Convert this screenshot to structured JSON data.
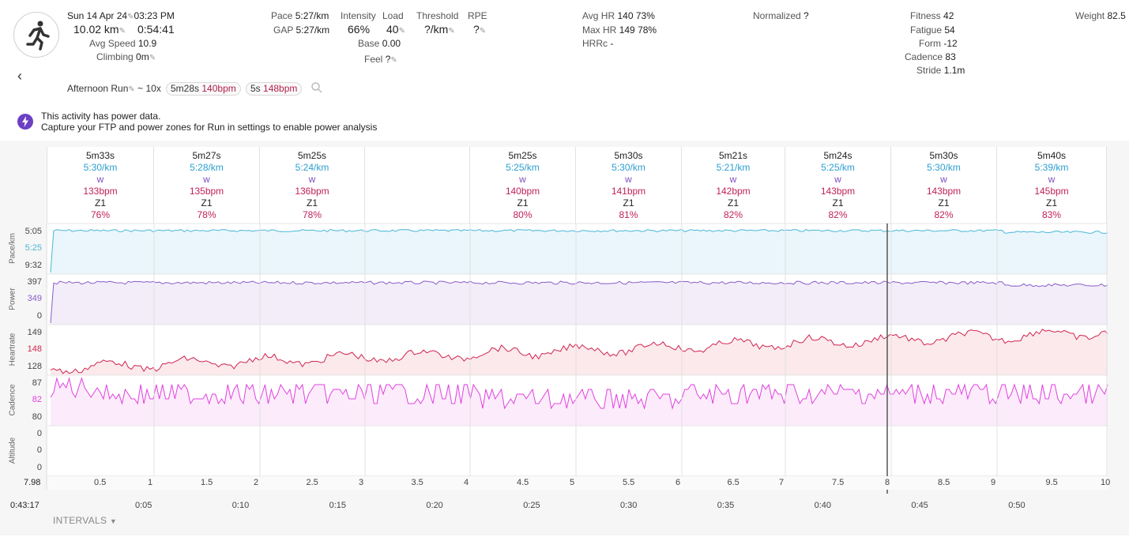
{
  "header": {
    "date_time": "Sun 14 Apr 24",
    "time_of_day": "03:23 PM",
    "distance": "10.02 km",
    "duration": "0:54:41",
    "avg_speed_label": "Avg Speed",
    "avg_speed_value": "10.9",
    "climbing_label": "Climbing",
    "climbing_value": "0m",
    "pace_label": "Pace",
    "pace_value": "5:27/km",
    "gap_label": "GAP",
    "gap_value": "5:27/km",
    "intensity_label": "Intensity",
    "intensity_value": "66%",
    "load_label": "Load",
    "load_value": "40",
    "base_label": "Base",
    "base_value": "0.00",
    "feel_label": "Feel",
    "feel_value": "?",
    "threshold_label": "Threshold",
    "threshold_value": "?/km",
    "rpe_label": "RPE",
    "rpe_value": "?",
    "avg_hr_label": "Avg HR",
    "avg_hr_value": "140",
    "avg_hr_pct": "73%",
    "max_hr_label": "Max HR",
    "max_hr_value": "149",
    "max_hr_pct": "78%",
    "hrrc_label": "HRRc",
    "hrrc_value": "-",
    "normalized_label": "Normalized",
    "normalized_value": "?",
    "fitness_label": "Fitness",
    "fitness_value": "42",
    "fatigue_label": "Fatigue",
    "fatigue_value": "54",
    "form_label": "Form",
    "form_value": "-12",
    "cadence_label": "Cadence",
    "cadence_value": "83",
    "stride_label": "Stride",
    "stride_value": "1.1m",
    "weight_label": "Weight",
    "weight_value": "82.5"
  },
  "activity": {
    "name": "Afternoon Run",
    "tilde": "~",
    "reps": "10x",
    "tag1_time": "5m28s",
    "tag1_hr": "140bpm",
    "tag2_time": "5s",
    "tag2_hr": "148bpm"
  },
  "notice": {
    "line1": "This activity has power data.",
    "line2": "Capture your FTP and power zones for Run in settings to enable power analysis"
  },
  "intervals": [
    {
      "time": "5m33s",
      "pace": "5:30/km",
      "power": "w",
      "hr": "133bpm",
      "zone": "Z1",
      "pct": "76%"
    },
    {
      "time": "5m27s",
      "pace": "5:28/km",
      "power": "w",
      "hr": "135bpm",
      "zone": "Z1",
      "pct": "78%"
    },
    {
      "time": "5m25s",
      "pace": "5:24/km",
      "power": "w",
      "hr": "136bpm",
      "zone": "Z1",
      "pct": "78%"
    },
    {
      "time": "",
      "pace": "",
      "power": "",
      "hr": "",
      "zone": "",
      "pct": ""
    },
    {
      "time": "5m25s",
      "pace": "5:25/km",
      "power": "w",
      "hr": "140bpm",
      "zone": "Z1",
      "pct": "80%"
    },
    {
      "time": "5m30s",
      "pace": "5:30/km",
      "power": "w",
      "hr": "141bpm",
      "zone": "Z1",
      "pct": "81%"
    },
    {
      "time": "5m21s",
      "pace": "5:21/km",
      "power": "w",
      "hr": "142bpm",
      "zone": "Z1",
      "pct": "82%"
    },
    {
      "time": "5m24s",
      "pace": "5:25/km",
      "power": "w",
      "hr": "143bpm",
      "zone": "Z1",
      "pct": "82%"
    },
    {
      "time": "5m30s",
      "pace": "5:30/km",
      "power": "w",
      "hr": "143bpm",
      "zone": "Z1",
      "pct": "82%"
    },
    {
      "time": "5m40s",
      "pace": "5:39/km",
      "power": "w",
      "hr": "145bpm",
      "zone": "Z1",
      "pct": "83%"
    }
  ],
  "panels": {
    "pace": {
      "label": "Pace/km",
      "top": "5:05",
      "mid": "5:25",
      "bottom": "9:32"
    },
    "power": {
      "label": "Power",
      "top": "397",
      "mid": "349",
      "bottom": "0"
    },
    "heartrate": {
      "label": "Heartrate",
      "top": "149",
      "mid": "148",
      "bottom": "128"
    },
    "cadence": {
      "label": "Cadence",
      "top": "87",
      "mid": "82",
      "bottom": "80"
    },
    "altitude": {
      "label": "Altitude",
      "top": "0",
      "mid": "0",
      "bottom": "0"
    }
  },
  "distance_axis": {
    "start": "7.98",
    "labels": [
      "0.5",
      "1",
      "1.5",
      "2",
      "2.5",
      "3",
      "3.5",
      "4",
      "4.5",
      "5",
      "5.5",
      "6",
      "6.5",
      "7",
      "7.5",
      "8",
      "8.5",
      "9",
      "9.5",
      "10"
    ]
  },
  "time_axis": {
    "cursor": "0:43:17",
    "labels": [
      "0:05",
      "0:10",
      "0:15",
      "0:20",
      "0:25",
      "0:30",
      "0:35",
      "0:40",
      "0:45",
      "0:50"
    ]
  },
  "footer": {
    "intervals_toggle": "INTERVALS"
  },
  "colors": {
    "pace": "#4ab6d8",
    "power": "#8a5cc8",
    "heartrate": "#d0244e",
    "cadence": "#e040e0",
    "accent": "#6c3fc5"
  }
}
